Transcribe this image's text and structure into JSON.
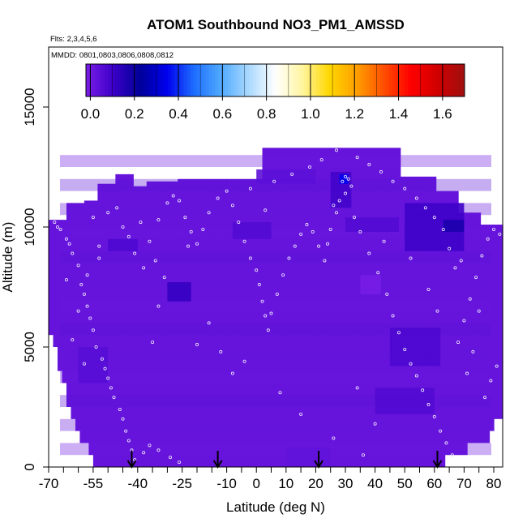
{
  "chart_data": {
    "type": "heatmap",
    "title": "ATOM1 Southbound NO3_PM1_AMSSD",
    "flights_label": "Flts: 2,3,4,5,6",
    "dates_label": "MMDD: 0801,0803,0806,0808,0812",
    "xlabel": "Latitude (deg N)",
    "ylabel": "Altitude (m)",
    "xlim": [
      -70,
      83
    ],
    "ylim": [
      0,
      17500
    ],
    "x_ticks_labeled": [
      -70,
      -55,
      -40,
      -25,
      -10,
      0,
      10,
      20,
      30,
      40,
      50,
      60,
      70,
      80
    ],
    "x_ticks_minor": [
      -65,
      -60,
      -50,
      -45,
      -35,
      -30,
      -20,
      -15,
      -5,
      5,
      15,
      25,
      35,
      45,
      55,
      65,
      75
    ],
    "y_ticks": [
      0,
      5000,
      10000,
      15000
    ],
    "colorbar": {
      "range": [
        -0.02,
        1.7
      ],
      "ticks": [
        0.0,
        0.2,
        0.4,
        0.6,
        0.8,
        1.0,
        1.2,
        1.4,
        1.6
      ],
      "tick_labels": [
        "0.0",
        "0.2",
        "0.4",
        "0.6",
        "0.8",
        "1.0",
        "1.2",
        "1.4",
        "1.6"
      ],
      "colors": [
        "#7a1ee6",
        "#3d00c8",
        "#000099",
        "#0000ee",
        "#1e6eff",
        "#50aaff",
        "#a8d8ff",
        "#ffffff",
        "#fff5a0",
        "#ffd700",
        "#ffa000",
        "#ff5000",
        "#ff0000",
        "#d00000",
        "#a01010"
      ]
    },
    "envelope": [
      {
        "lat": -70,
        "top": 10300
      },
      {
        "lat": -67,
        "top": 10300
      },
      {
        "lat": -64,
        "top": 11000
      },
      {
        "lat": -58,
        "top": 11100
      },
      {
        "lat": -54,
        "top": 11800
      },
      {
        "lat": -47,
        "top": 12200
      },
      {
        "lat": -42,
        "top": 11700
      },
      {
        "lat": -37,
        "top": 11900
      },
      {
        "lat": -26,
        "top": 12000
      },
      {
        "lat": -20,
        "top": 12000
      },
      {
        "lat": 2,
        "top": 13300
      },
      {
        "lat": 28,
        "top": 13300
      },
      {
        "lat": 48,
        "top": 12100
      },
      {
        "lat": 60,
        "top": 11500
      },
      {
        "lat": 68,
        "top": 10600
      },
      {
        "lat": 76,
        "top": 10100
      },
      {
        "lat": 83,
        "top": 9800
      }
    ],
    "floor": [
      {
        "lat": 83,
        "bottom": 2300
      },
      {
        "lat": 78,
        "bottom": 1200
      },
      {
        "lat": 64,
        "bottom": 250
      },
      {
        "lat": 55,
        "bottom": 150
      },
      {
        "lat": 32,
        "bottom": 0
      },
      {
        "lat": -54,
        "bottom": 0
      },
      {
        "lat": -62,
        "bottom": 2000
      },
      {
        "lat": -70,
        "bottom": 6000
      }
    ],
    "base_value": 0.02,
    "patches": [
      {
        "lat0": -30,
        "lat1": -22,
        "alt0": 6900,
        "alt1": 7700,
        "value": 0.12
      },
      {
        "lat0": -50,
        "lat1": -40,
        "alt0": 9000,
        "alt1": 9500,
        "value": 0.07
      },
      {
        "lat0": 25,
        "lat1": 32,
        "alt0": 10800,
        "alt1": 12300,
        "value": 0.09
      },
      {
        "lat0": 28,
        "lat1": 31,
        "alt0": 11800,
        "alt1": 12200,
        "value": 0.35
      },
      {
        "lat0": 50,
        "lat1": 70,
        "alt0": 9000,
        "alt1": 11000,
        "value": 0.1
      },
      {
        "lat0": 63,
        "lat1": 70,
        "alt0": 9800,
        "alt1": 10300,
        "value": 0.17
      },
      {
        "lat0": 45,
        "lat1": 62,
        "alt0": 4200,
        "alt1": 5800,
        "value": 0.07
      },
      {
        "lat0": 40,
        "lat1": 60,
        "alt0": 2200,
        "alt1": 3300,
        "value": 0.06
      },
      {
        "lat0": 30,
        "lat1": 48,
        "alt0": 9800,
        "alt1": 10400,
        "value": 0.06
      },
      {
        "lat0": -8,
        "lat1": 5,
        "alt0": 9500,
        "alt1": 10200,
        "value": 0.06
      },
      {
        "lat0": -60,
        "lat1": -50,
        "alt0": 3500,
        "alt1": 5000,
        "value": 0.05
      },
      {
        "lat0": 0,
        "lat1": 20,
        "alt0": 11800,
        "alt1": 12400,
        "value": 0.04
      },
      {
        "lat0": 10,
        "lat1": 25,
        "alt0": 0,
        "alt1": 800,
        "value": 0.03
      },
      {
        "lat0": 35,
        "lat1": 42,
        "alt0": 7200,
        "alt1": 8000,
        "value": -0.01
      }
    ],
    "arrows_lat": [
      -42,
      -13,
      21,
      61
    ],
    "sample_points": [
      [
        -68,
        10200
      ],
      [
        -67,
        10000
      ],
      [
        -66,
        9900
      ],
      [
        -64,
        9500
      ],
      [
        -63,
        9300
      ],
      [
        -62,
        8900
      ],
      [
        -60,
        8400
      ],
      [
        -59,
        7600
      ],
      [
        -58,
        7200
      ],
      [
        -57,
        6700
      ],
      [
        -56,
        6200
      ],
      [
        -55,
        5700
      ],
      [
        -54,
        5000
      ],
      [
        -52,
        4500
      ],
      [
        -51,
        4100
      ],
      [
        -50,
        3700
      ],
      [
        -49,
        3300
      ],
      [
        -48,
        2900
      ],
      [
        -46,
        2400
      ],
      [
        -45,
        2000
      ],
      [
        -44,
        1500
      ],
      [
        -43,
        1100
      ],
      [
        -42,
        700
      ],
      [
        -41,
        300
      ],
      [
        -38,
        600
      ],
      [
        -36,
        900
      ],
      [
        -33,
        700
      ],
      [
        -29,
        400
      ],
      [
        -26,
        200
      ],
      [
        -60,
        6500
      ],
      [
        -57,
        8000
      ],
      [
        -53,
        8700
      ],
      [
        -50,
        10600
      ],
      [
        -47,
        10800
      ],
      [
        -45,
        10000
      ],
      [
        -43,
        9600
      ],
      [
        -41,
        8900
      ],
      [
        -38,
        8300
      ],
      [
        -36,
        9400
      ],
      [
        -33,
        10300
      ],
      [
        -30,
        11000
      ],
      [
        -28,
        11300
      ],
      [
        -26,
        11100
      ],
      [
        -24,
        10400
      ],
      [
        -22,
        9800
      ],
      [
        -20,
        9300
      ],
      [
        -18,
        9900
      ],
      [
        -16,
        10600
      ],
      [
        -13,
        11200
      ],
      [
        -10,
        11500
      ],
      [
        -8,
        10900
      ],
      [
        -6,
        10200
      ],
      [
        -4,
        9400
      ],
      [
        -2,
        8700
      ],
      [
        0,
        8200
      ],
      [
        1,
        7600
      ],
      [
        2,
        6900
      ],
      [
        3,
        6300
      ],
      [
        4,
        5700
      ],
      [
        5,
        6400
      ],
      [
        7,
        7200
      ],
      [
        9,
        8000
      ],
      [
        11,
        8700
      ],
      [
        13,
        9200
      ],
      [
        15,
        9700
      ],
      [
        17,
        10100
      ],
      [
        19,
        9800
      ],
      [
        21,
        9200
      ],
      [
        23,
        8600
      ],
      [
        25,
        9900
      ],
      [
        27,
        10600
      ],
      [
        28,
        11100
      ],
      [
        29,
        11900
      ],
      [
        30,
        11400
      ],
      [
        31,
        12000
      ],
      [
        33,
        10400
      ],
      [
        35,
        9800
      ],
      [
        38,
        8900
      ],
      [
        41,
        8100
      ],
      [
        44,
        7200
      ],
      [
        46,
        6300
      ],
      [
        48,
        5600
      ],
      [
        50,
        4900
      ],
      [
        52,
        4300
      ],
      [
        54,
        3800
      ],
      [
        56,
        3200
      ],
      [
        58,
        2600
      ],
      [
        60,
        2100
      ],
      [
        62,
        1500
      ],
      [
        64,
        1000
      ],
      [
        66,
        500
      ],
      [
        68,
        5200
      ],
      [
        70,
        6100
      ],
      [
        72,
        7000
      ],
      [
        74,
        7900
      ],
      [
        76,
        8800
      ],
      [
        78,
        9500
      ],
      [
        80,
        9900
      ],
      [
        82,
        9700
      ],
      [
        81,
        4200
      ],
      [
        79,
        3600
      ],
      [
        77,
        2900
      ],
      [
        73,
        4800
      ],
      [
        71,
        3900
      ],
      [
        67,
        8300
      ],
      [
        65,
        9100
      ],
      [
        63,
        9900
      ],
      [
        60,
        10400
      ],
      [
        57,
        10800
      ],
      [
        54,
        11200
      ],
      [
        50,
        11600
      ],
      [
        46,
        11900
      ],
      [
        42,
        12300
      ],
      [
        38,
        12600
      ],
      [
        34,
        12900
      ],
      [
        27,
        13200
      ],
      [
        22,
        12800
      ],
      [
        18,
        12500
      ],
      [
        12,
        12200
      ],
      [
        6,
        11900
      ],
      [
        -2,
        11600
      ],
      [
        -35,
        5200
      ],
      [
        -33,
        6700
      ],
      [
        -31,
        7900
      ],
      [
        -20,
        5100
      ],
      [
        -16,
        6000
      ],
      [
        -12,
        4800
      ],
      [
        -8,
        3900
      ],
      [
        -4,
        4400
      ],
      [
        8,
        3100
      ],
      [
        15,
        2200
      ],
      [
        26,
        1200
      ],
      [
        34,
        3300
      ],
      [
        40,
        1800
      ],
      [
        36,
        500
      ],
      [
        -64,
        7800
      ],
      [
        -62,
        5300
      ],
      [
        -58,
        4300
      ],
      [
        -55,
        10400
      ],
      [
        -53,
        9200
      ],
      [
        -39,
        10200
      ],
      [
        -34,
        8600
      ],
      [
        -23,
        9200
      ],
      [
        3,
        10700
      ],
      [
        24,
        9300
      ],
      [
        43,
        9400
      ],
      [
        52,
        8700
      ],
      [
        58,
        7400
      ],
      [
        61,
        6500
      ],
      [
        69,
        8600
      ],
      [
        75,
        6500
      ],
      [
        32,
        11700
      ],
      [
        30,
        12100
      ],
      [
        26,
        10900
      ]
    ]
  }
}
